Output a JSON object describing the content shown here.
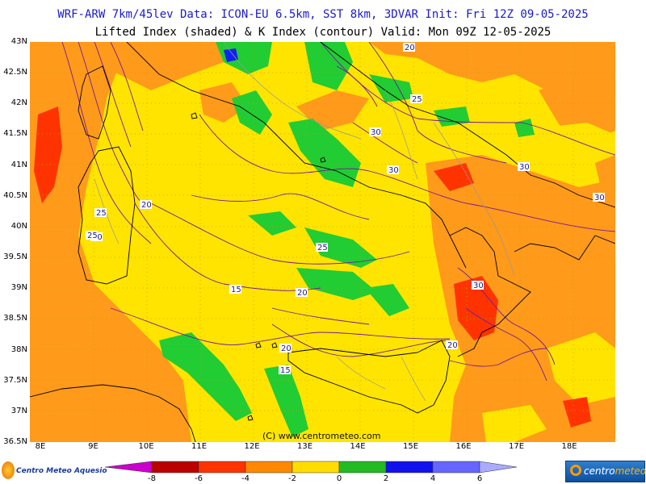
{
  "header": {
    "line1": "WRF-ARW 7km/45lev  Data: ICON-EU 6.5km, SST 8km, 3DVAR  Init: Fri 12Z 09-05-2025",
    "line2": "Lifted Index (shaded) & K Index (contour)  Valid: Mon 09Z 12-05-2025"
  },
  "axes": {
    "lat_labels": [
      "43N",
      "42.5N",
      "42N",
      "41.5N",
      "41N",
      "40.5N",
      "40N",
      "39.5N",
      "39N",
      "38.5N",
      "38N",
      "37.5N",
      "37N",
      "36.5N"
    ],
    "lon_labels": [
      "8E",
      "9E",
      "10E",
      "11E",
      "12E",
      "13E",
      "14E",
      "15E",
      "16E",
      "17E",
      "18E"
    ]
  },
  "watermark": "(C) www.centrometeo.com",
  "legend": {
    "colors": [
      "#cc00cc",
      "#bb0000",
      "#ff3300",
      "#ff8800",
      "#ffdd00",
      "#22bb22",
      "#1111ee",
      "#6666ff",
      "#aaaaff"
    ],
    "tick_labels": [
      "-8",
      "-6",
      "-4",
      "-2",
      "0",
      "2",
      "4",
      "6"
    ]
  },
  "logos": {
    "left_text": "Centro Meteo Aquesio",
    "right_text_a": "centro",
    "right_text_b": "meteo"
  },
  "contour_labels": [
    "20",
    "25",
    "30",
    "30",
    "30",
    "30",
    "25",
    "20",
    "15",
    "30",
    "25",
    "20",
    "25",
    "30",
    "20",
    "20",
    "15"
  ],
  "colors": {
    "li_yellow": "#ffe400",
    "li_orange": "#ff9a1a",
    "li_red": "#ff3300",
    "li_green": "#22cc33",
    "li_blue": "#1122ee",
    "contour": "#7a1a9a",
    "coast": "#000000",
    "border": "#999999"
  }
}
